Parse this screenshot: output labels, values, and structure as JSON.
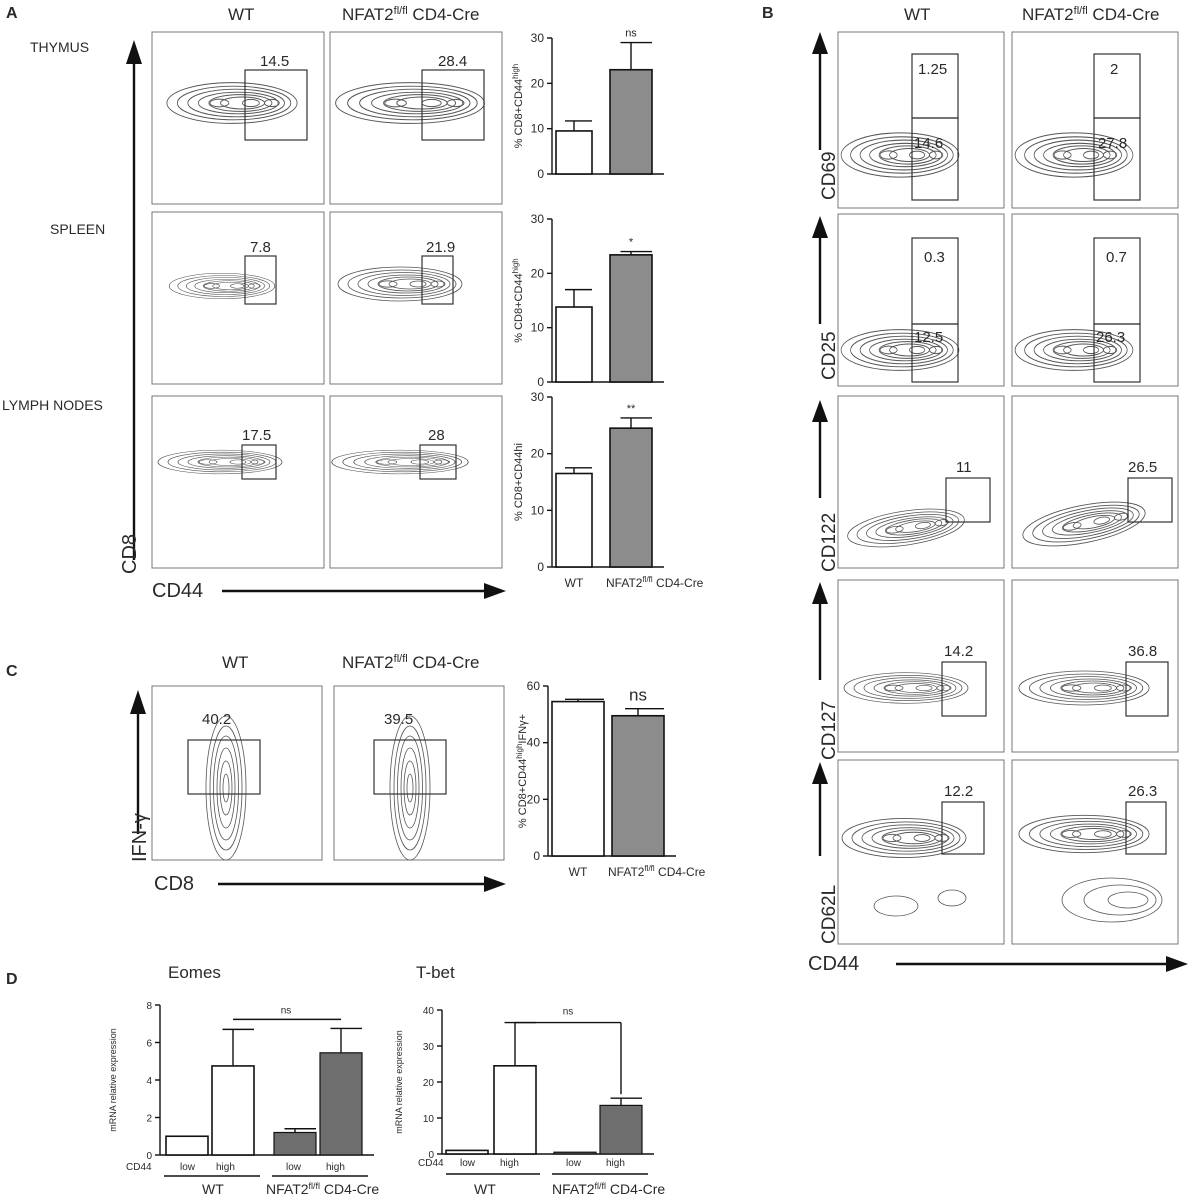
{
  "panel_letters": {
    "a": "A",
    "b": "B",
    "c": "C",
    "d": "D"
  },
  "panel_a": {
    "col_wt": "WT",
    "col_ko_prefix": "NFAT2",
    "col_ko_sup": "fl/fl",
    "col_ko_suffix": " CD4-Cre",
    "rows": [
      {
        "label": "THYMUS",
        "wt_gate": "14.5",
        "ko_gate": "28.4"
      },
      {
        "label": "SPLEEN",
        "wt_gate": "7.8",
        "ko_gate": "21.9"
      },
      {
        "label": "LYMPH NODES",
        "wt_gate": "17.5",
        "ko_gate": "28"
      }
    ],
    "y_axis": "CD8",
    "x_axis": "CD44"
  },
  "panel_b": {
    "col_wt": "WT",
    "col_ko_prefix": "NFAT2",
    "col_ko_sup": "fl/fl",
    "col_ko_suffix": " CD4-Cre",
    "rows": [
      {
        "marker": "CD69",
        "wt_top": "1.25",
        "wt_bottom": "14.6",
        "ko_top": "2",
        "ko_bottom": "27.8"
      },
      {
        "marker": "CD25",
        "wt_top": "0.3",
        "wt_bottom": "12.5",
        "ko_top": "0.7",
        "ko_bottom": "26.3"
      },
      {
        "marker": "CD122",
        "wt_gate": "11",
        "ko_gate": "26.5"
      },
      {
        "marker": "CD127",
        "wt_gate": "14.2",
        "ko_gate": "36.8"
      },
      {
        "marker": "CD62L",
        "wt_gate": "12.2",
        "ko_gate": "26.3"
      }
    ],
    "x_axis": "CD44"
  },
  "panel_c": {
    "col_wt": "WT",
    "col_ko_prefix": "NFAT2",
    "col_ko_sup": "fl/fl",
    "col_ko_suffix": " CD4-Cre",
    "wt_gate": "40.2",
    "ko_gate": "39.5",
    "y_axis": "IFN-γ",
    "x_axis": "CD8"
  },
  "panel_d": {
    "eomes_title": "Eomes",
    "tbet_title": "T-bet",
    "y_label": "mRNA relative expression",
    "cd44_label": "CD44",
    "low": "low",
    "high": "high",
    "wt": "WT",
    "ko_prefix": "NFAT2",
    "ko_sup": "fl/fl",
    "ko_suffix": " CD4-Cre",
    "ns": "ns"
  },
  "chart_data": [
    {
      "type": "bar",
      "id": "a-thymus",
      "title": "",
      "categories": [
        "WT",
        "NFAT2fl/fl CD4-Cre"
      ],
      "values": [
        9.5,
        23
      ],
      "errors": [
        2.2,
        6
      ],
      "ylim": [
        0,
        30
      ],
      "yticks": [
        "0",
        "10",
        "20",
        "30"
      ],
      "ylabel_main": "% CD8+CD44",
      "ylabel_sup": "high",
      "significance": "ns"
    },
    {
      "type": "bar",
      "id": "a-spleen",
      "title": "",
      "categories": [
        "WT",
        "NFAT2fl/fl CD4-Cre"
      ],
      "values": [
        13.8,
        23.4
      ],
      "errors": [
        3.2,
        0.6
      ],
      "ylim": [
        0,
        30
      ],
      "yticks": [
        "0",
        "10",
        "20",
        "30"
      ],
      "ylabel_main": "% CD8+CD44",
      "ylabel_sup": "high",
      "significance": "*"
    },
    {
      "type": "bar",
      "id": "a-lymph",
      "title": "",
      "categories": [
        "WT",
        "NFAT2fl/fl CD4-Cre"
      ],
      "values": [
        16.5,
        24.5
      ],
      "errors": [
        1,
        1.8
      ],
      "ylim": [
        0,
        30
      ],
      "yticks": [
        "0",
        "10",
        "20",
        "30"
      ],
      "ylabel_main": "% CD8+CD44hi",
      "ylabel_sup": "",
      "significance": "**",
      "xtick_wt": "WT",
      "xtick_ko_prefix": "NFAT2",
      "xtick_ko_sup": "fl/fl",
      "xtick_ko_suffix": " CD4-Cre"
    },
    {
      "type": "bar",
      "id": "c-ifng",
      "title": "",
      "categories": [
        "WT",
        "NFAT2fl/fl CD4-Cre"
      ],
      "values": [
        54.5,
        49.5
      ],
      "errors": [
        0.8,
        2.5
      ],
      "ylim": [
        0,
        60
      ],
      "yticks": [
        "0",
        "20",
        "40",
        "60"
      ],
      "ylabel_main": "% CD8+CD44",
      "ylabel_sup": "high",
      "ylabel_tail": "IFNγ+",
      "significance": "ns",
      "xtick_wt": "WT",
      "xtick_ko_prefix": "NFAT2",
      "xtick_ko_sup": "fl/fl",
      "xtick_ko_suffix": " CD4-Cre"
    },
    {
      "type": "bar",
      "id": "d-eomes",
      "title": "Eomes",
      "groups": [
        "WT",
        "NFAT2fl/fl CD4-Cre"
      ],
      "categories": [
        "WT low",
        "WT high",
        "KO low",
        "KO high"
      ],
      "values": [
        1,
        4.75,
        1.2,
        5.45
      ],
      "errors": [
        0,
        1.95,
        0.2,
        1.3
      ],
      "ylim": [
        0,
        8
      ],
      "yticks": [
        "0",
        "2",
        "4",
        "6",
        "8"
      ],
      "ylabel": "mRNA relative expression",
      "significance": "ns"
    },
    {
      "type": "bar",
      "id": "d-tbet",
      "title": "T-bet",
      "groups": [
        "WT",
        "NFAT2fl/fl CD4-Cre"
      ],
      "categories": [
        "WT low",
        "WT high",
        "KO low",
        "KO high"
      ],
      "values": [
        1,
        24.5,
        0.5,
        13.5
      ],
      "errors": [
        0,
        12,
        0,
        2
      ],
      "ylim": [
        0,
        40
      ],
      "yticks": [
        "0",
        "10",
        "20",
        "30",
        "40"
      ],
      "ylabel": "mRNA relative expression",
      "significance": "ns"
    }
  ]
}
